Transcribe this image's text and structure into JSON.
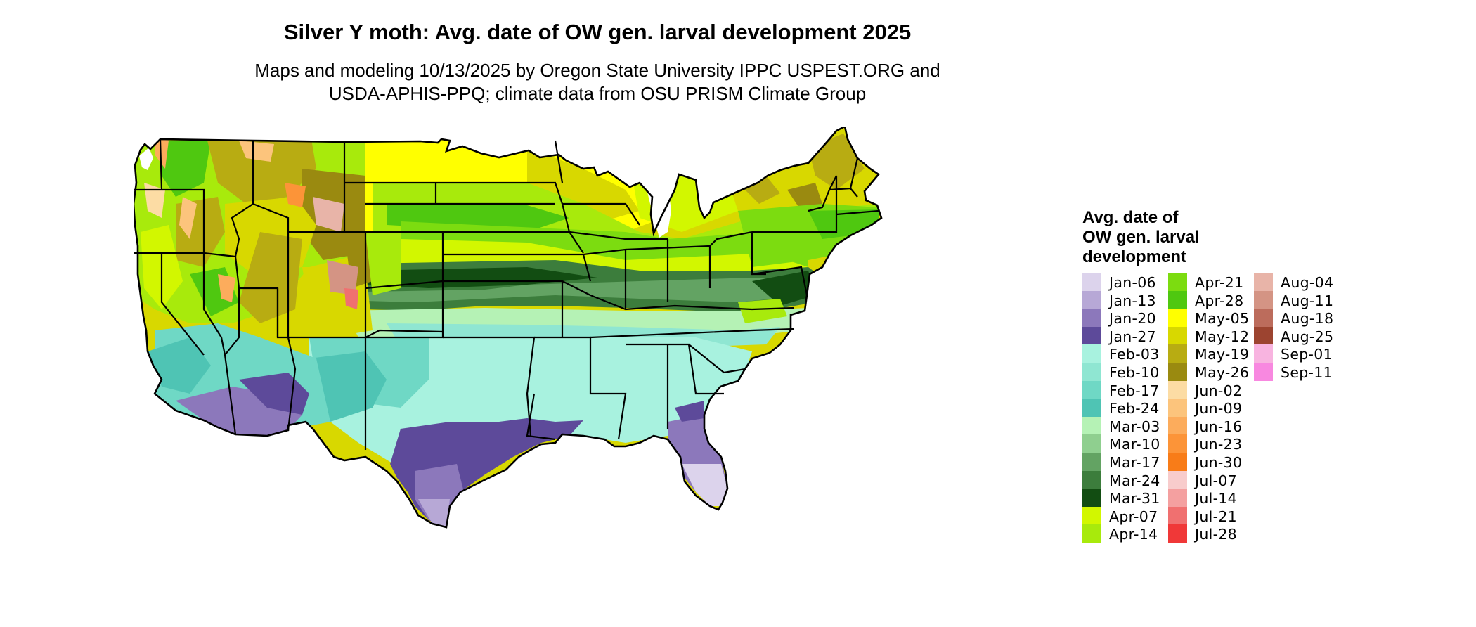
{
  "title": "Silver Y moth: Avg. date of OW gen. larval development 2025",
  "subtitle_line1": "Maps and modeling 10/13/2025 by Oregon State University IPPC USPEST.ORG and",
  "subtitle_line2": "USDA-APHIS-PPQ; climate data from OSU PRISM Climate Group",
  "legend": {
    "title_line1": "Avg. date of",
    "title_line2": "OW gen. larval",
    "title_line3": "development",
    "columns": [
      [
        {
          "label": "Jan-06",
          "color": "#dcd3ec"
        },
        {
          "label": "Jan-13",
          "color": "#b7a8d6"
        },
        {
          "label": "Jan-20",
          "color": "#8c78bb"
        },
        {
          "label": "Jan-27",
          "color": "#5d4a9a"
        },
        {
          "label": "Feb-03",
          "color": "#a8f2df"
        },
        {
          "label": "Feb-10",
          "color": "#8fe6d2"
        },
        {
          "label": "Feb-17",
          "color": "#6fd8c5"
        },
        {
          "label": "Feb-24",
          "color": "#4fc4b4"
        },
        {
          "label": "Mar-03",
          "color": "#b5f2b5"
        },
        {
          "label": "Mar-10",
          "color": "#8fcf8f"
        },
        {
          "label": "Mar-17",
          "color": "#63a363"
        },
        {
          "label": "Mar-24",
          "color": "#3c7d3c"
        },
        {
          "label": "Mar-31",
          "color": "#124d12"
        },
        {
          "label": "Apr-07",
          "color": "#d2f700"
        },
        {
          "label": "Apr-14",
          "color": "#a8ea0c"
        }
      ],
      [
        {
          "label": "Apr-21",
          "color": "#7cdc10"
        },
        {
          "label": "Apr-28",
          "color": "#4fc810"
        },
        {
          "label": "May-05",
          "color": "#ffff00"
        },
        {
          "label": "May-12",
          "color": "#d8d800"
        },
        {
          "label": "May-19",
          "color": "#b8ac12"
        },
        {
          "label": "May-26",
          "color": "#9a8a10"
        },
        {
          "label": "Jun-02",
          "color": "#fcdca4"
        },
        {
          "label": "Jun-09",
          "color": "#fcc47c"
        },
        {
          "label": "Jun-16",
          "color": "#fcac5c"
        },
        {
          "label": "Jun-23",
          "color": "#fc9438"
        },
        {
          "label": "Jun-30",
          "color": "#f87c18"
        },
        {
          "label": "Jul-07",
          "color": "#f8cccc"
        },
        {
          "label": "Jul-14",
          "color": "#f4a0a0"
        },
        {
          "label": "Jul-21",
          "color": "#f07070"
        },
        {
          "label": "Jul-28",
          "color": "#f03838"
        }
      ],
      [
        {
          "label": "Aug-04",
          "color": "#e8b4a8"
        },
        {
          "label": "Aug-11",
          "color": "#d49484"
        },
        {
          "label": "Aug-18",
          "color": "#bc6c5c"
        },
        {
          "label": "Aug-25",
          "color": "#9c4430"
        },
        {
          "label": "Sep-01",
          "color": "#f8b4e0"
        },
        {
          "label": "Sep-11",
          "color": "#f888e0"
        }
      ]
    ]
  }
}
